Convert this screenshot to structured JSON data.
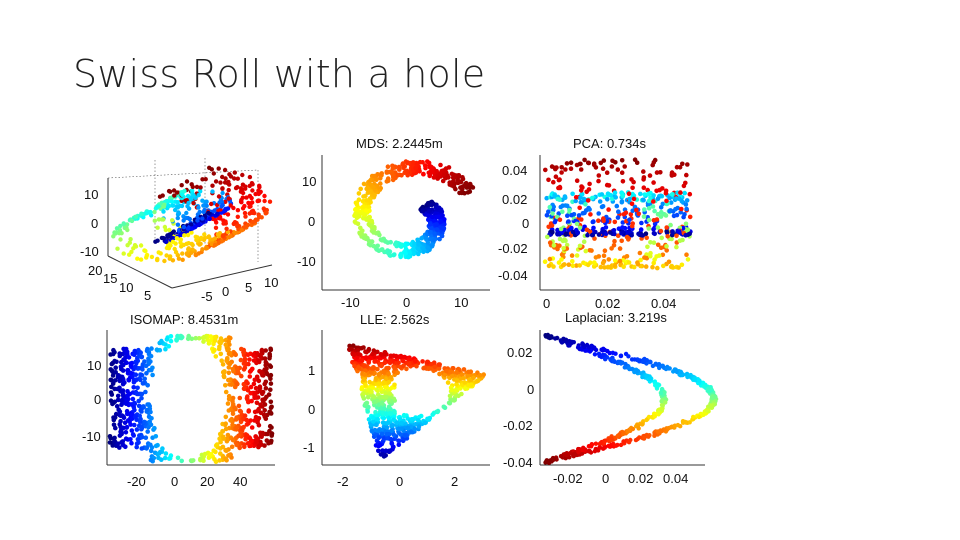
{
  "slide": {
    "title": "Swiss Roll with a hole"
  },
  "chart_data": [
    {
      "name": "original",
      "type": "scatter",
      "title": "",
      "z_ticks": [
        "10",
        "0",
        "-10"
      ],
      "y_ticks": [
        "20",
        "15",
        "10",
        "5"
      ],
      "x_ticks": [
        "-5",
        "0",
        "5",
        "10"
      ],
      "colormap": "jet",
      "description_of_data": "3-D Swiss roll (spiral surface) with a rectangular hole, colored by position along the roll"
    },
    {
      "name": "mds",
      "type": "scatter",
      "title": "MDS: 2.2445m",
      "x_ticks": [
        "-10",
        "0",
        "10"
      ],
      "y_ticks": [
        "10",
        "0",
        "-10"
      ],
      "xlim": [
        -14,
        14
      ],
      "ylim": [
        -14,
        14
      ]
    },
    {
      "name": "pca",
      "type": "scatter",
      "title": "PCA: 0.734s",
      "x_ticks": [
        "0",
        "0.02",
        "0.04"
      ],
      "y_ticks": [
        "0.04",
        "0.02",
        "0",
        "-0.02",
        "-0.04"
      ],
      "xlim": [
        -0.002,
        0.055
      ],
      "ylim": [
        -0.05,
        0.045
      ]
    },
    {
      "name": "isomap",
      "type": "scatter",
      "title": "ISOMAP: 8.4531m",
      "x_ticks": [
        "-20",
        "0",
        "20",
        "40"
      ],
      "y_ticks": [
        "10",
        "0",
        "-10"
      ],
      "xlim": [
        -35,
        55
      ],
      "ylim": [
        -18,
        18
      ]
    },
    {
      "name": "lle",
      "type": "scatter",
      "title": "LLE: 2.562s",
      "x_ticks": [
        "-2",
        "0",
        "2"
      ],
      "y_ticks": [
        "1",
        "0",
        "-1"
      ],
      "xlim": [
        -2.8,
        3.1
      ],
      "ylim": [
        -1.6,
        1.8
      ]
    },
    {
      "name": "laplacian",
      "type": "scatter",
      "title": "Laplacian: 3.219s",
      "x_ticks": [
        "-0.02",
        "0",
        "0.02",
        "0.04"
      ],
      "y_ticks": [
        "0.02",
        "0",
        "-0.02",
        "-0.04"
      ],
      "xlim": [
        -0.035,
        0.05
      ],
      "ylim": [
        -0.041,
        0.035
      ]
    }
  ]
}
